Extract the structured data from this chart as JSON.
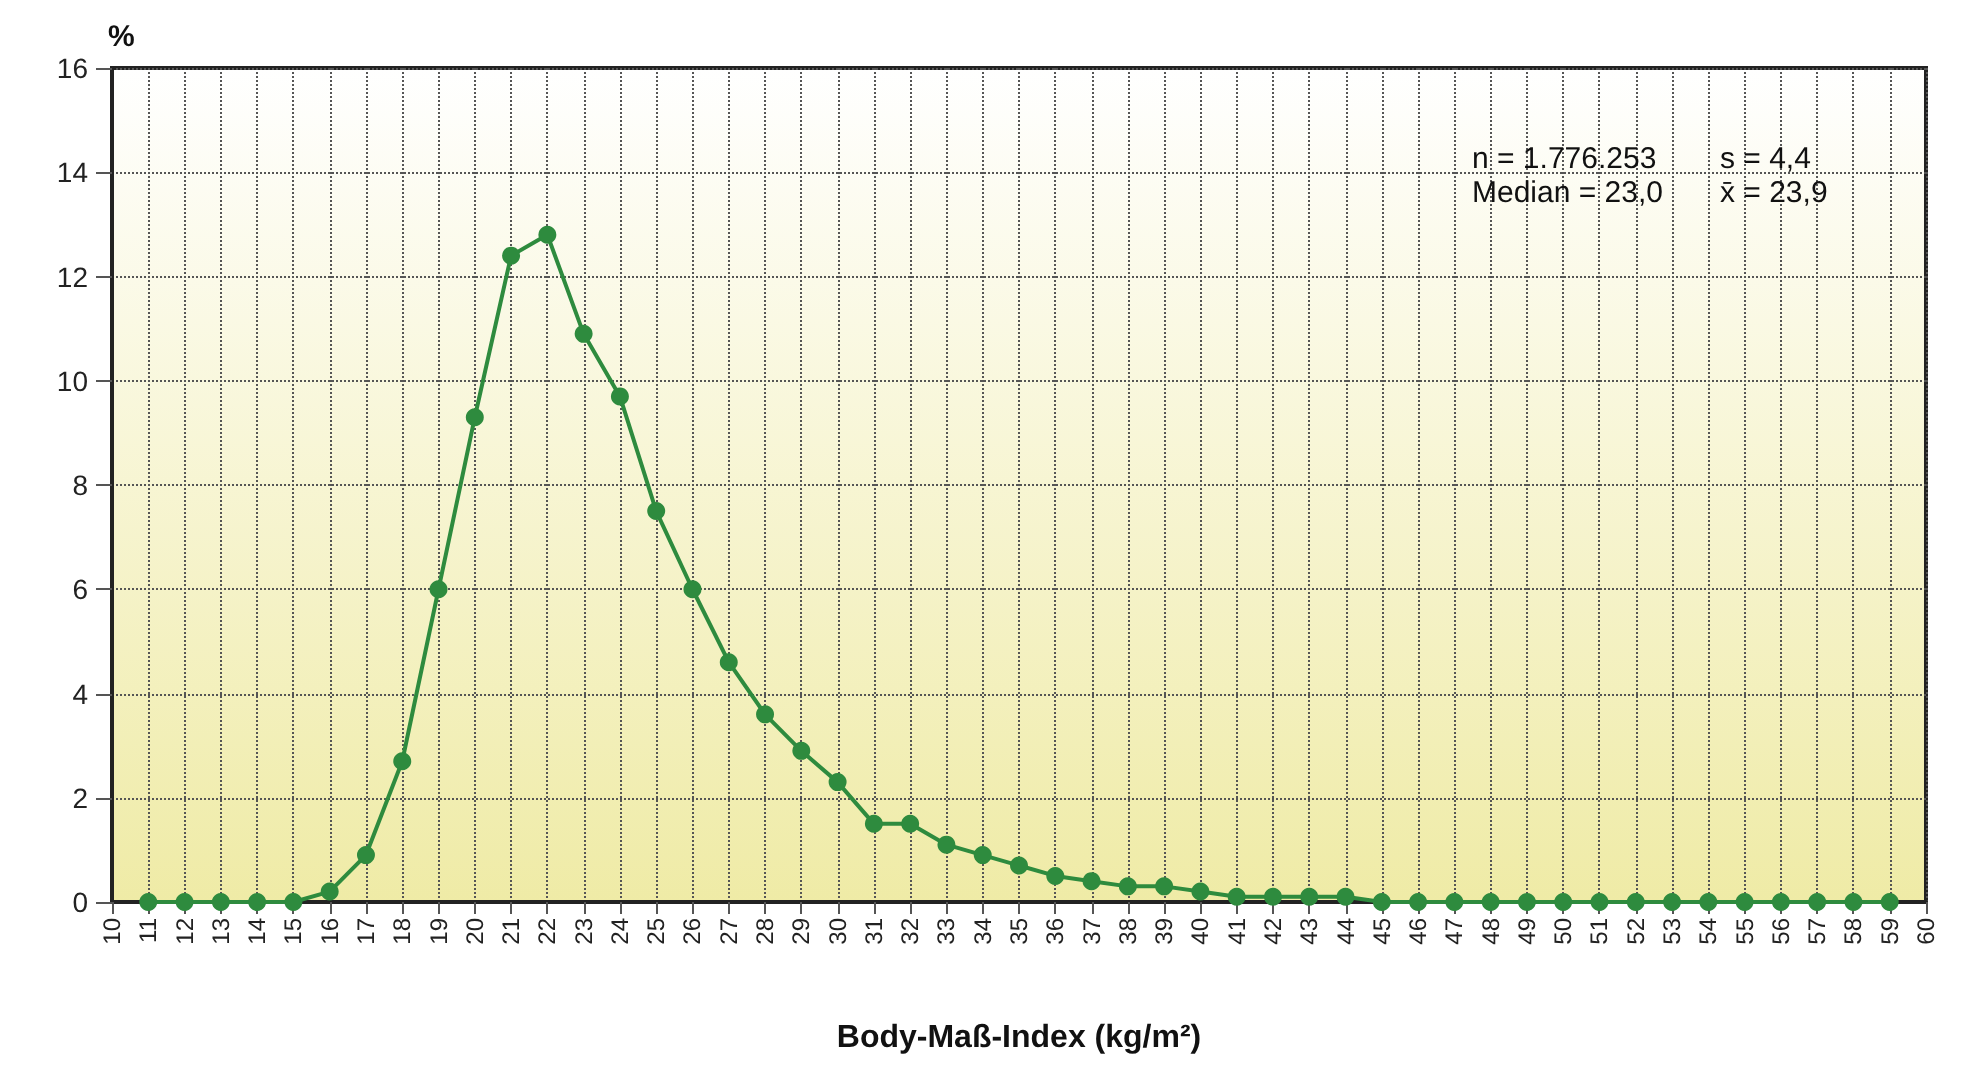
{
  "chart_data": {
    "type": "line",
    "ylabel": "%",
    "xlabel": "Body-Maß-Index (kg/m²)",
    "annotations": [
      "n = 1.776.253",
      "s = 4,4",
      "Median = 23,0",
      "x̄ = 23,9"
    ],
    "x": [
      11,
      12,
      13,
      14,
      15,
      16,
      17,
      18,
      19,
      20,
      21,
      22,
      23,
      24,
      25,
      26,
      27,
      28,
      29,
      30,
      31,
      32,
      33,
      34,
      35,
      36,
      37,
      38,
      39,
      40,
      41,
      42,
      43,
      44,
      45,
      46,
      47,
      48,
      49,
      50,
      51,
      52,
      53,
      54,
      55,
      56,
      57,
      58,
      59
    ],
    "series": [
      {
        "color": "#2e8b3e",
        "values": [
          0,
          0,
          0,
          0,
          0,
          0.2,
          0.9,
          2.7,
          6.0,
          9.3,
          12.4,
          12.8,
          10.9,
          9.7,
          7.5,
          6.0,
          4.6,
          3.6,
          2.9,
          2.3,
          1.5,
          1.5,
          1.1,
          0.9,
          0.7,
          0.5,
          0.4,
          0.3,
          0.3,
          0.2,
          0.1,
          0.1,
          0.1,
          0.1,
          0,
          0,
          0,
          0,
          0,
          0,
          0,
          0,
          0,
          0,
          0,
          0,
          0,
          0,
          0
        ]
      }
    ],
    "xlim": [
      10,
      60
    ],
    "xticks": [
      10,
      11,
      12,
      13,
      14,
      15,
      16,
      17,
      18,
      19,
      20,
      21,
      22,
      23,
      24,
      25,
      26,
      27,
      28,
      29,
      30,
      31,
      32,
      33,
      34,
      35,
      36,
      37,
      38,
      39,
      40,
      41,
      42,
      43,
      44,
      45,
      46,
      47,
      48,
      49,
      50,
      51,
      52,
      53,
      54,
      55,
      56,
      57,
      58,
      59,
      60
    ],
    "ylim": [
      0,
      16
    ],
    "yticks": [
      0,
      2,
      4,
      6,
      8,
      10,
      12,
      14,
      16
    ],
    "grid": true,
    "marker": "circle",
    "line_style": "solid"
  }
}
